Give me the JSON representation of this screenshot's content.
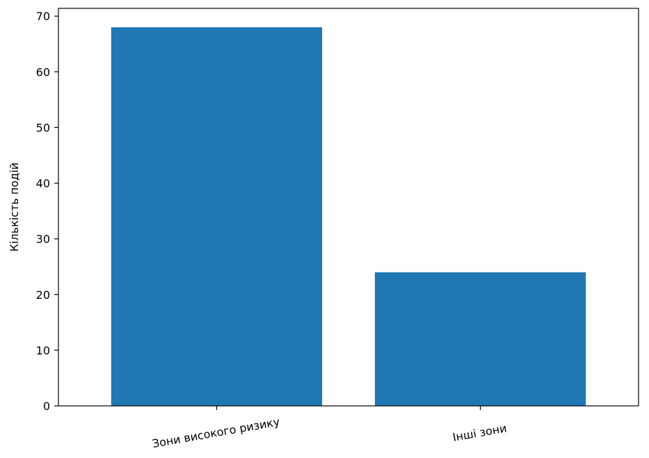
{
  "chart_data": {
    "type": "bar",
    "title": "",
    "xlabel": "",
    "ylabel": "Кількість подій",
    "categories": [
      "Зони високого ризику",
      "Інші зони"
    ],
    "values": [
      68,
      24
    ],
    "ylim": [
      0,
      71.4
    ],
    "yticks": [
      0,
      10,
      20,
      30,
      40,
      50,
      60,
      70
    ],
    "bar_color": "#1f77b4",
    "grid": false,
    "legend": "none"
  }
}
